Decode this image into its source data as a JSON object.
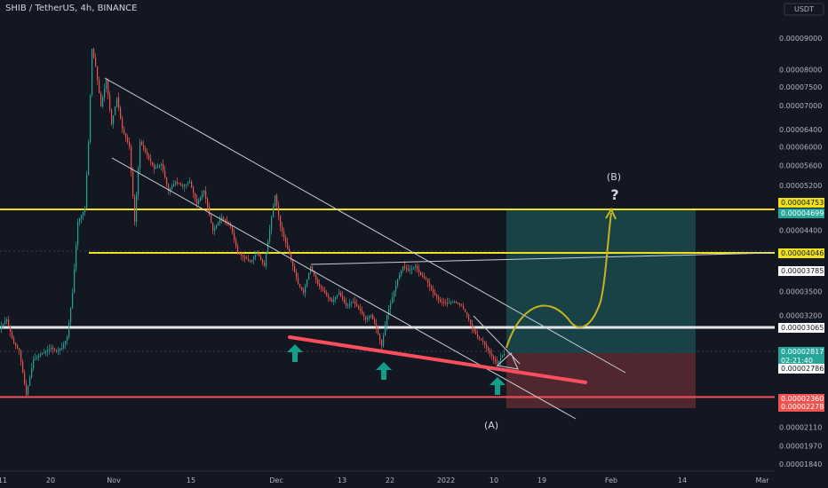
{
  "header": {
    "title": "SHIB / TetherUS, 4h, BINANCE",
    "currency": "USDT"
  },
  "colors": {
    "background": "#131722",
    "up": "#26a69a",
    "down": "#ef5350",
    "yellow": "#f0e11f",
    "white": "#e6e6e6",
    "red_line": "#ff4f5e",
    "green_zone": "rgba(38,166,154,0.30)",
    "red_zone": "rgba(239,83,80,0.28)"
  },
  "chart_data": {
    "type": "candlestick",
    "title": "SHIB / TetherUS, 4h, BINANCE",
    "y_scale": "log",
    "ylim": [
      1.75e-05,
      1.02e-05
    ],
    "y_ticks": [
      "0.00009000",
      "0.00008000",
      "0.00007500",
      "0.00007000",
      "0.00006400",
      "0.00006000",
      "0.00005600",
      "0.00005200",
      "0.00004400",
      "0.00003500",
      "0.00003200",
      "0.00002110",
      "0.00001970",
      "0.00001840"
    ],
    "x_ticks": [
      "11",
      "20",
      "Nov",
      "15",
      "Dec",
      "13",
      "22",
      "2022",
      "10",
      "19",
      "Feb",
      "14",
      "Mar"
    ],
    "price_tags": [
      {
        "label": "0.00004753",
        "bg": "#f0e11f",
        "fg": "#131722"
      },
      {
        "label": "0.00004699",
        "bg": "#26a69a",
        "fg": "#ffffff"
      },
      {
        "label": "0.00004046",
        "bg": "#f0e11f",
        "fg": "#131722"
      },
      {
        "label": "0.00003785",
        "bg": "#ffffff",
        "fg": "#131722"
      },
      {
        "label": "0.00003065",
        "bg": "#ffffff",
        "fg": "#131722"
      },
      {
        "label": "0.00002817",
        "bg": "#26a69a",
        "fg": "#ffffff",
        "sub": "02:21:40"
      },
      {
        "label": "0.00002786",
        "bg": "#ffffff",
        "fg": "#131722"
      },
      {
        "label": "0.00002360",
        "bg": "#ef5350",
        "fg": "#ffffff"
      },
      {
        "label": "0.00002278",
        "bg": "#ef5350",
        "fg": "#ffffff"
      }
    ],
    "horizontal_levels": [
      {
        "price": 4.753e-05,
        "color": "#f0e11f"
      },
      {
        "price": 4.046e-05,
        "color": "#f0e11f"
      },
      {
        "price": 3.065e-05,
        "color": "#e6e6e6"
      },
      {
        "price": 2.36e-05,
        "color": "#ef5350"
      }
    ],
    "annotations": {
      "wave_b_label": "(B)",
      "wave_b_mark": "?",
      "wave_a_label": "(A)"
    },
    "legend": "none",
    "grid": false
  }
}
